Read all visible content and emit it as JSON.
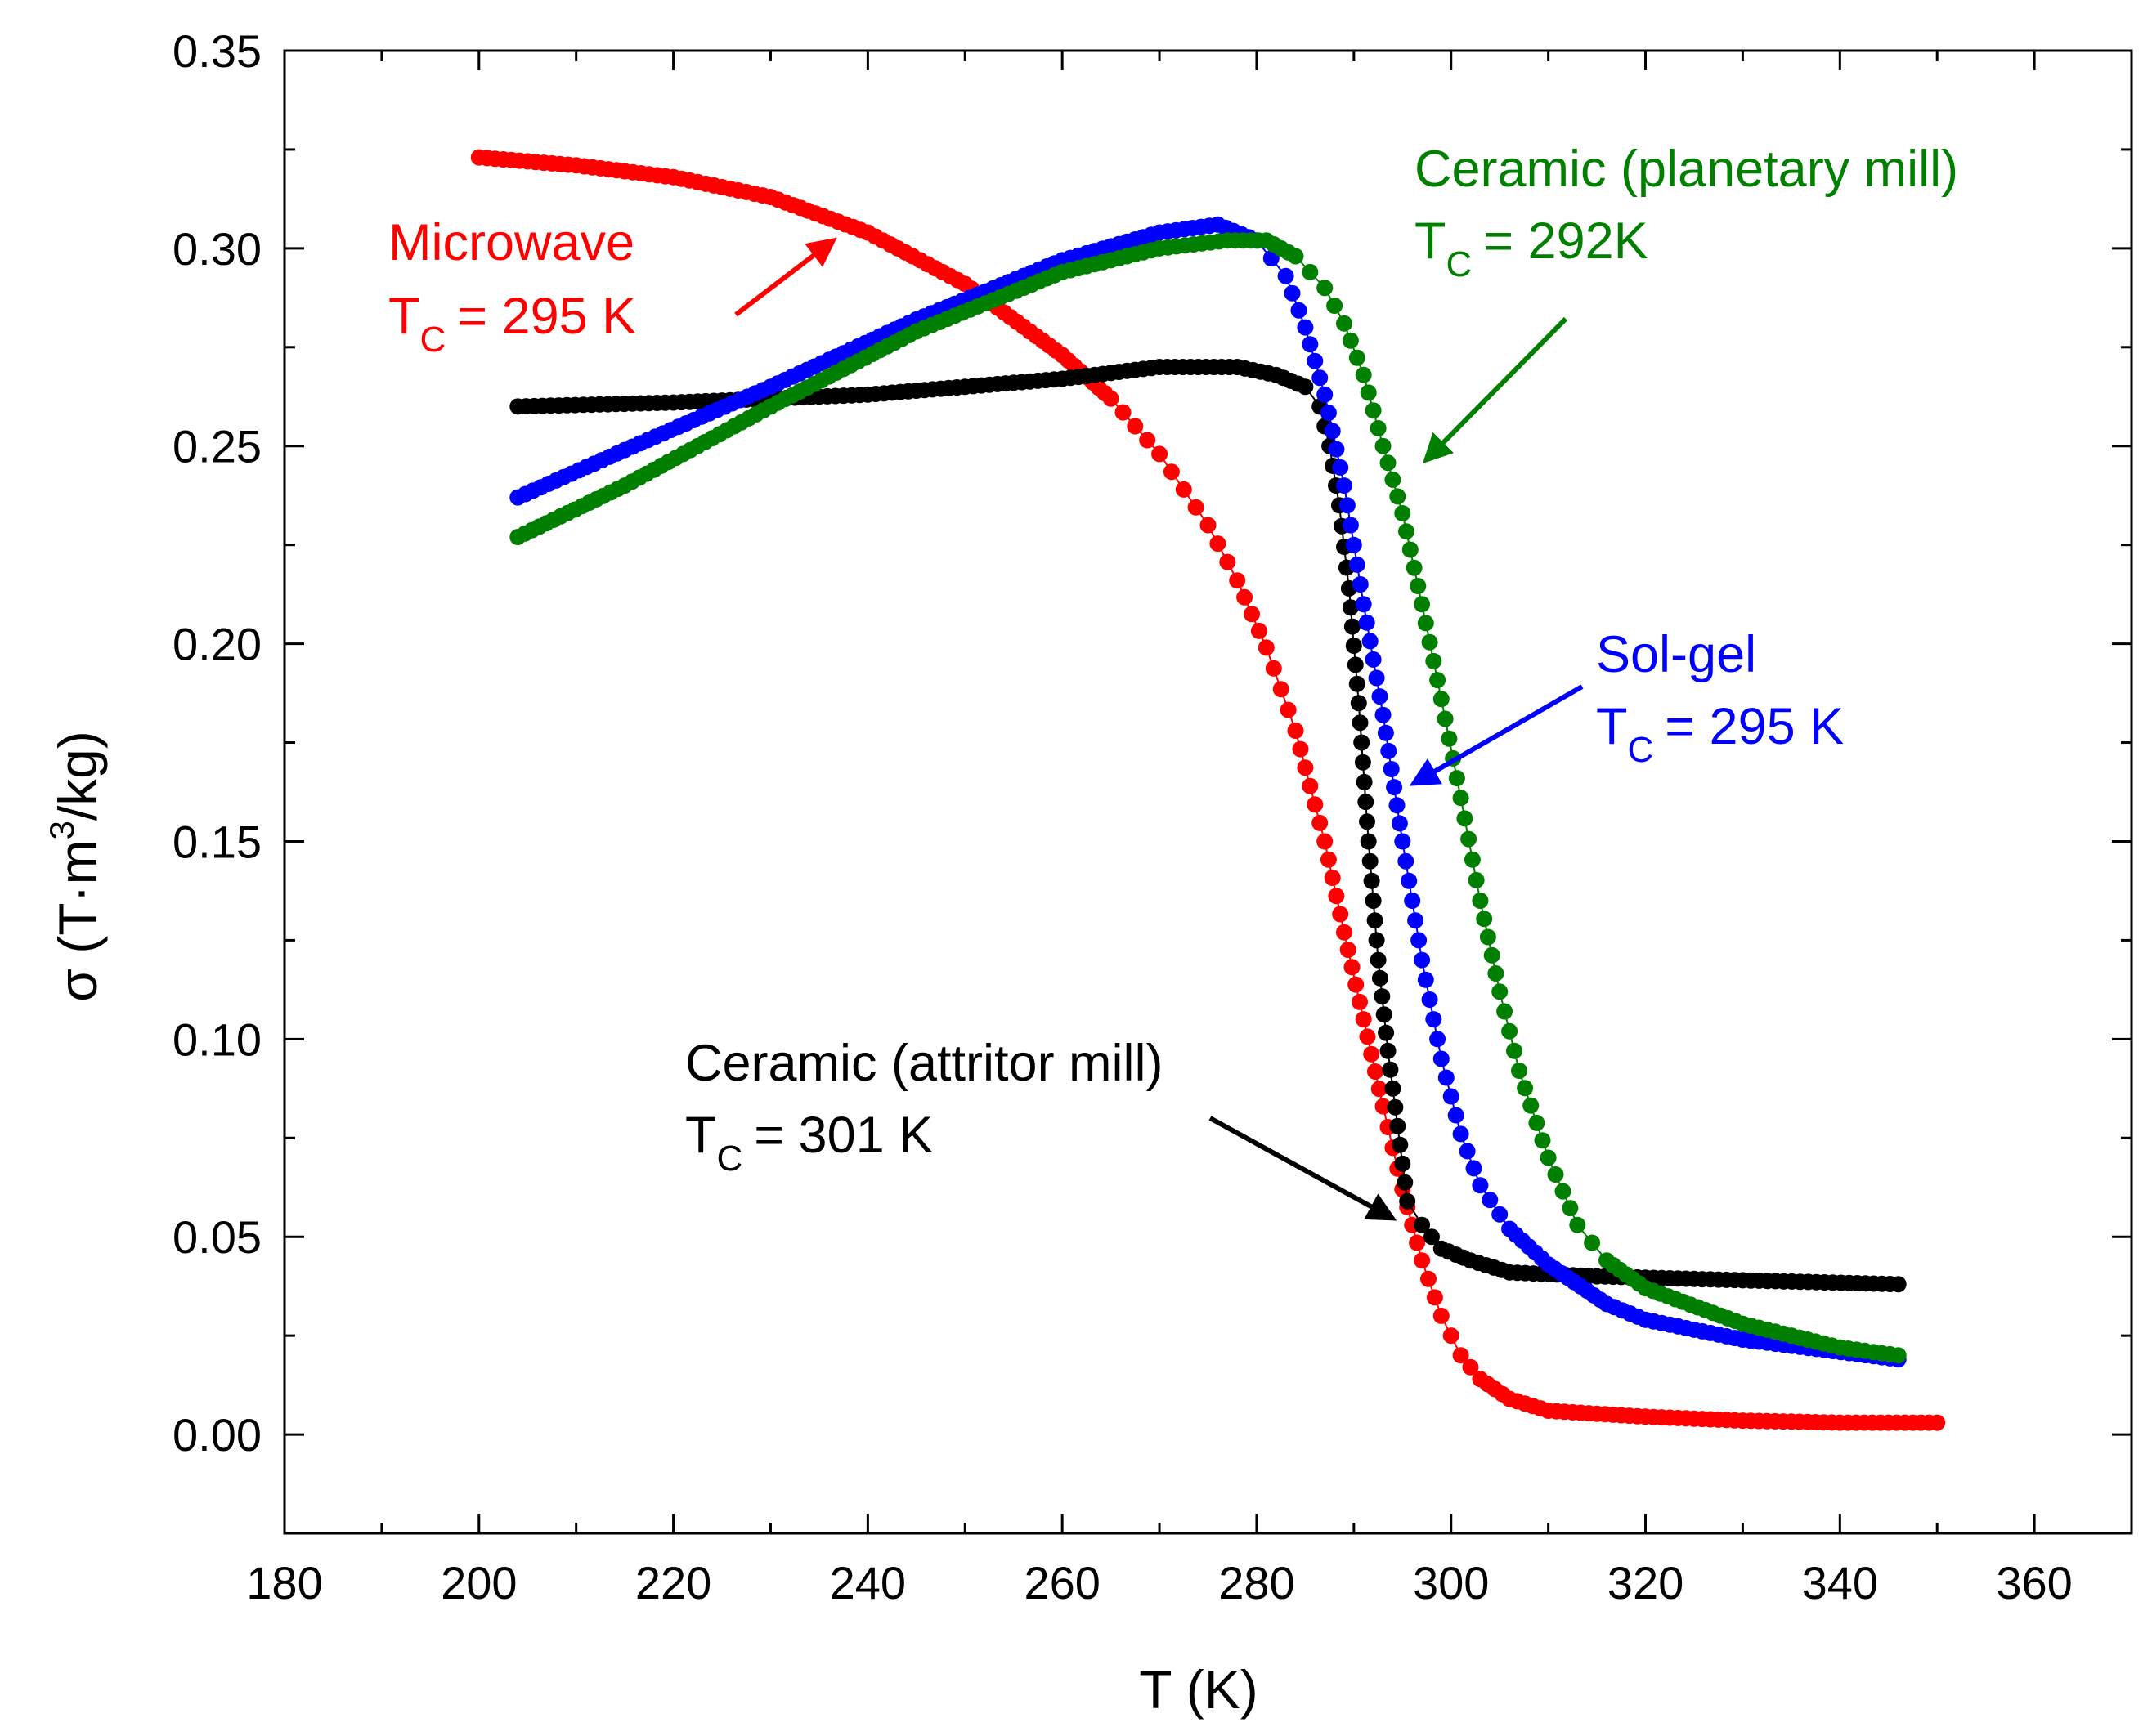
{
  "chart_data": {
    "type": "scatter",
    "title": "",
    "xlabel": "T (K)",
    "ylabel": "σ (T·m³/kg)",
    "ylabel_parts": {
      "main": "σ (T·m",
      "sup": "3",
      "tail": "/kg)"
    },
    "xlim": [
      180,
      370
    ],
    "ylim": [
      -0.025,
      0.35
    ],
    "xticks": [
      180,
      200,
      220,
      240,
      260,
      280,
      300,
      320,
      340,
      360
    ],
    "xtick_labels": [
      "180",
      "200",
      "220",
      "240",
      "260",
      "280",
      "300",
      "320",
      "340",
      "360"
    ],
    "yticks": [
      0.0,
      0.05,
      0.1,
      0.15,
      0.2,
      0.25,
      0.3,
      0.35
    ],
    "ytick_labels": [
      "0.00",
      "0.05",
      "0.10",
      "0.15",
      "0.20",
      "0.25",
      "0.30",
      "0.35"
    ],
    "grid": false,
    "series": [
      {
        "name": "Microwave",
        "color": "#ff0000",
        "x": [
          200,
          210,
          220,
          230,
          240,
          250,
          260,
          265,
          270,
          275,
          278,
          281,
          284,
          287,
          289,
          291,
          293,
          295,
          297,
          299,
          301,
          303,
          306,
          310,
          320,
          330,
          340,
          350
        ],
        "y": [
          0.323,
          0.321,
          0.318,
          0.313,
          0.304,
          0.291,
          0.273,
          0.262,
          0.248,
          0.23,
          0.216,
          0.199,
          0.178,
          0.15,
          0.127,
          0.105,
          0.083,
          0.062,
          0.044,
          0.03,
          0.02,
          0.014,
          0.009,
          0.006,
          0.0045,
          0.0035,
          0.003,
          0.003
        ]
      },
      {
        "name": "Ceramic (attritor mill)",
        "color": "#000000",
        "x": [
          204,
          220,
          240,
          260,
          270,
          278,
          282,
          285,
          286.5,
          287.5,
          288.5,
          289.5,
          290.5,
          291.5,
          292.5,
          293.5,
          294.5,
          295.5,
          297,
          299,
          302,
          306,
          315,
          330,
          346
        ],
        "y": [
          0.26,
          0.261,
          0.263,
          0.267,
          0.27,
          0.27,
          0.268,
          0.265,
          0.26,
          0.25,
          0.235,
          0.214,
          0.185,
          0.15,
          0.12,
          0.097,
          0.078,
          0.059,
          0.053,
          0.047,
          0.044,
          0.041,
          0.04,
          0.039,
          0.038
        ]
      },
      {
        "name": "Sol-gel",
        "color": "#0000ff",
        "x": [
          204,
          215,
          230,
          245,
          260,
          270,
          276,
          280,
          283,
          285,
          287,
          289,
          291,
          293,
          295,
          297,
          299,
          301,
          303,
          306,
          310,
          316,
          320,
          330,
          346
        ],
        "y": [
          0.237,
          0.249,
          0.265,
          0.282,
          0.297,
          0.304,
          0.306,
          0.302,
          0.293,
          0.28,
          0.263,
          0.24,
          0.21,
          0.182,
          0.15,
          0.12,
          0.095,
          0.076,
          0.063,
          0.052,
          0.043,
          0.033,
          0.029,
          0.024,
          0.019
        ]
      },
      {
        "name": "Ceramic (planetary mill)",
        "color": "#007f00",
        "x": [
          204,
          215,
          230,
          245,
          260,
          270,
          277,
          281,
          284,
          287,
          289,
          291,
          293,
          295,
          297,
          299,
          301,
          303,
          305,
          307,
          310,
          313,
          316,
          320,
          330,
          340,
          346
        ],
        "y": [
          0.227,
          0.24,
          0.26,
          0.279,
          0.294,
          0.3,
          0.302,
          0.302,
          0.298,
          0.29,
          0.281,
          0.268,
          0.25,
          0.233,
          0.21,
          0.186,
          0.161,
          0.135,
          0.112,
          0.092,
          0.07,
          0.053,
          0.044,
          0.037,
          0.028,
          0.022,
          0.02
        ]
      }
    ],
    "annotations": [
      {
        "label": "Microwave",
        "tc": "= 295 K",
        "color": "#ff0000",
        "points_to": [
          238,
          0.302
        ]
      },
      {
        "label": "Ceramic (planetary mill)",
        "tc": "= 292K",
        "color": "#007f00",
        "points_to": [
          296,
          0.245
        ]
      },
      {
        "label": "Sol-gel",
        "tc": "= 295 K",
        "color": "#0000ff",
        "points_to": [
          294.5,
          0.164
        ]
      },
      {
        "label": "Ceramic (attritor mill)",
        "tc": "= 301 K",
        "color": "#000000",
        "points_to": [
          296,
          0.057
        ]
      }
    ],
    "tc_symbol": {
      "main": "T",
      "sub": "C"
    }
  }
}
